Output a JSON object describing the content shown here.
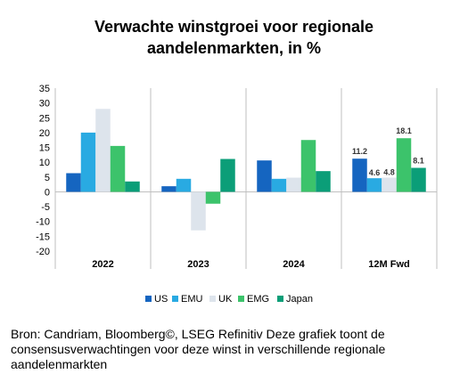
{
  "title": {
    "line1": "Verwachte winstgroei voor regionale",
    "line2": "aandelenmarkten, in %"
  },
  "source": "Bron: Candriam, Bloomberg©, LSEG Refinitiv Deze grafiek toont de consensusverwachtingen voor deze winst in verschillende regionale aandelenmarkten",
  "chart_data": {
    "type": "bar",
    "title": "Verwachte winstgroei voor regionale aandelenmarkten, in %",
    "xlabel": "",
    "ylabel": "",
    "ylim": [
      -20,
      35
    ],
    "yticks": [
      35,
      30,
      25,
      20,
      15,
      10,
      5,
      0,
      -5,
      -10,
      -15,
      -20
    ],
    "categories": [
      "2022",
      "2023",
      "2024",
      "12M Fwd"
    ],
    "series": [
      {
        "name": "US",
        "color": "#1565c0",
        "values": [
          6.3,
          1.9,
          10.6,
          11.2
        ]
      },
      {
        "name": "EMU",
        "color": "#29aae2",
        "values": [
          20.0,
          4.4,
          4.4,
          4.6
        ]
      },
      {
        "name": "UK",
        "color": "#dde4ec",
        "values": [
          28.0,
          -13.0,
          4.8,
          4.8
        ]
      },
      {
        "name": "EMG",
        "color": "#3cc36b",
        "values": [
          15.5,
          -4.0,
          17.5,
          18.1
        ]
      },
      {
        "name": "Japan",
        "color": "#0b9e78",
        "values": [
          3.5,
          11.1,
          7.0,
          8.1
        ]
      }
    ],
    "data_labels": {
      "category": "12M Fwd",
      "values": [
        "11.2",
        "4.6",
        "4.8",
        "18.1",
        "8.1"
      ]
    },
    "grid": "vertical separators between categories",
    "legend": "bottom-center"
  }
}
